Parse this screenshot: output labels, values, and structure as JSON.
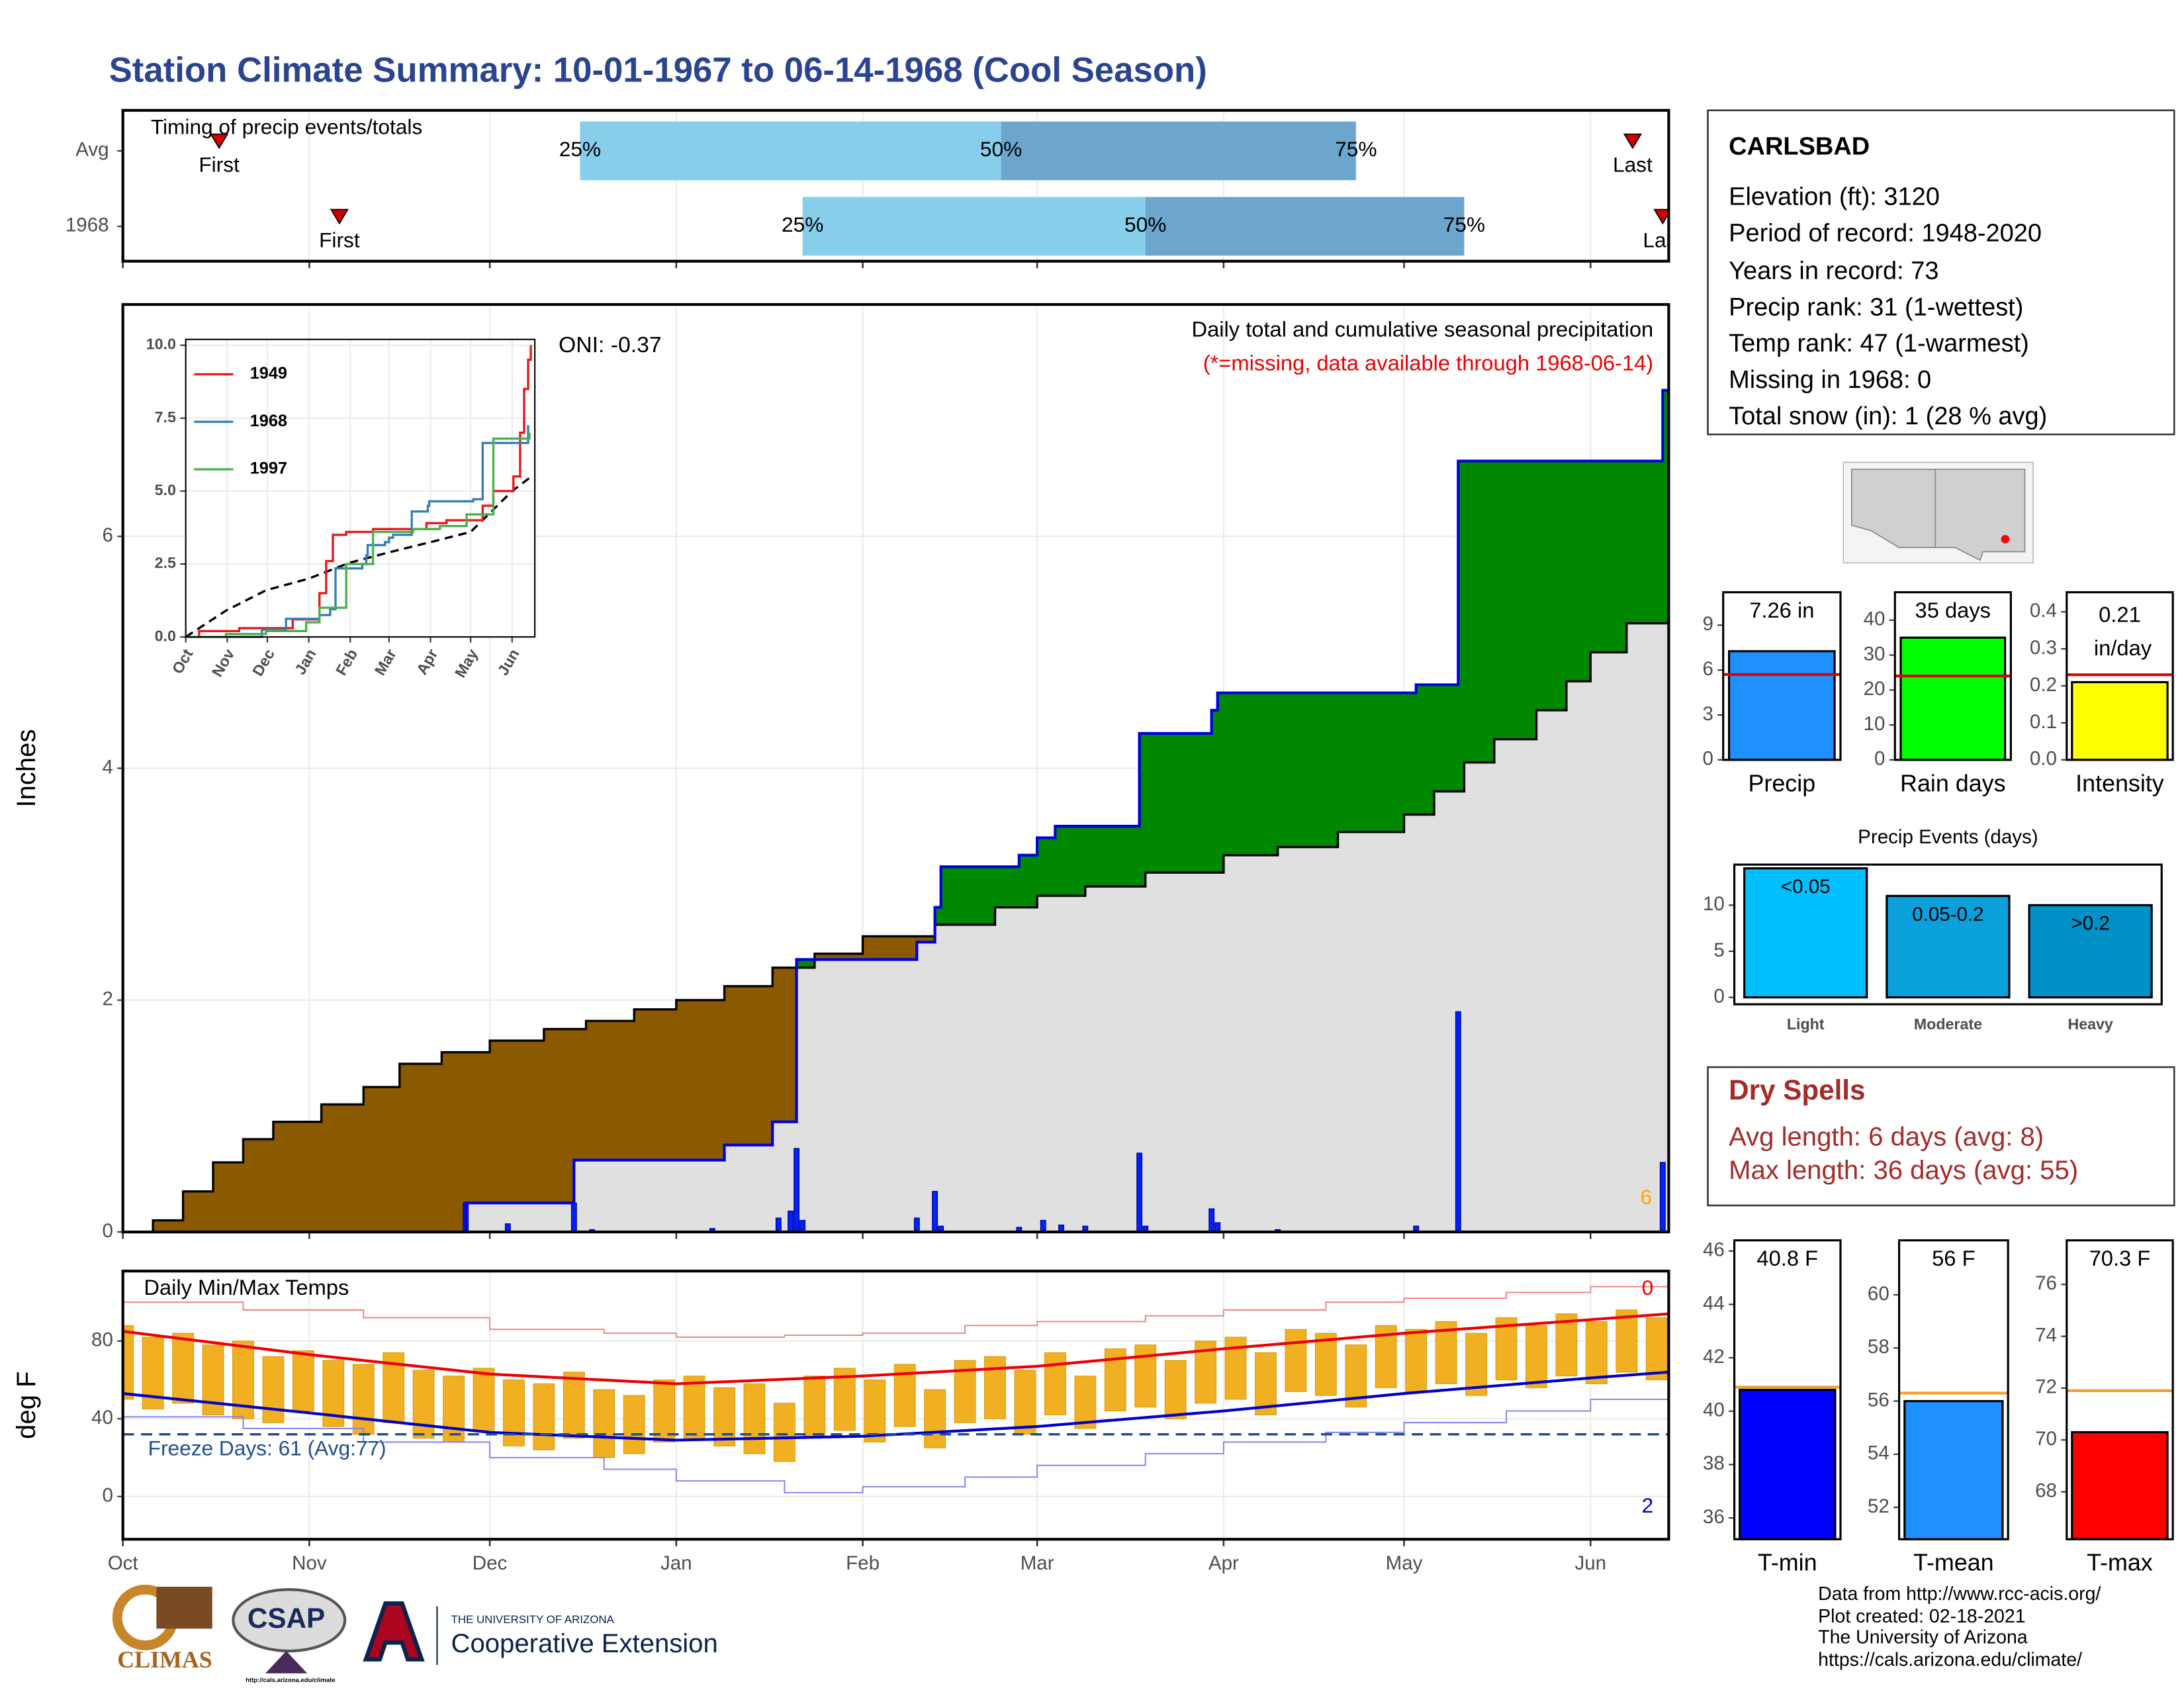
{
  "title": "Station Climate Summary: 10-01-1967 to 06-14-1968 (Cool Season)",
  "station": {
    "name": "CARLSBAD",
    "lines": [
      "Elevation (ft): 3120",
      "Period of record: 1948-2020",
      "Years in record: 73",
      "Precip rank: 31 (1-wettest)",
      "Temp rank: 47 (1-warmest)",
      "Missing in 1968: 0",
      "Total snow (in): 1 (28 % avg)"
    ]
  },
  "dry_spells": {
    "title": "Dry Spells",
    "lines": [
      "Avg length: 6 days (avg: 8)",
      "Max length: 36 days (avg: 55)"
    ]
  },
  "footer": [
    "Data from http://www.rcc-acis.org/",
    "Plot created: 02-18-2021",
    "The University of Arizona",
    "https://cals.arizona.edu/climate/"
  ],
  "logos": {
    "climas": "CLIMAS",
    "csap": "CSAP",
    "csap_url": "http://cals.arizona.edu/climate",
    "ua": "THE UNIVERSITY OF ARIZONA",
    "extension": "Cooperative Extension"
  },
  "chart_data": [
    {
      "type": "timeline",
      "title": "Timing of precip events/totals",
      "xlim": [
        0,
        257
      ],
      "xticks": [
        0,
        31,
        61,
        92,
        123,
        152,
        183,
        213,
        244
      ],
      "grid": true,
      "categories": [
        "Avg",
        "1968"
      ],
      "first": [
        16,
        36
      ],
      "p25": [
        76,
        113
      ],
      "p50": [
        146,
        170
      ],
      "p75": [
        205,
        223
      ],
      "last": [
        251,
        256
      ],
      "first_label": "First",
      "last_label": "Last",
      "percentile_labels": [
        "25%",
        "50%",
        "75%"
      ],
      "colors": [
        "#87ceeb",
        "#6ca6cd"
      ],
      "marker_color": "#cc0000"
    },
    {
      "type": "cumulative",
      "title": "Daily total and cumulative seasonal precipitation",
      "subtitle": "(*=missing, data available through 1968-06-14)",
      "annotation": "ONI: -0.37",
      "ylabel": "Inches",
      "xlim": [
        0,
        257
      ],
      "xticks": [
        0,
        31,
        61,
        92,
        123,
        152,
        183,
        213,
        244
      ],
      "ylim": [
        0,
        8
      ],
      "yticks": [
        0,
        2,
        4,
        6
      ],
      "grid": true,
      "count": 6,
      "count_color": "#ffa500",
      "above_color": "#008800",
      "below_color": "#8b5a00",
      "base_color": "#e0e0e0",
      "observed": {
        "color": "#0000e0",
        "x": [
          0,
          57,
          75,
          100,
          108,
          112,
          132,
          135,
          136,
          149,
          152,
          155,
          169,
          181,
          182,
          215,
          222,
          256
        ],
        "values": [
          0,
          0.25,
          0.62,
          0.75,
          0.95,
          2.35,
          2.5,
          2.8,
          3.15,
          3.25,
          3.4,
          3.5,
          4.3,
          4.5,
          4.65,
          4.72,
          6.65,
          7.26
        ]
      },
      "average": {
        "color": "#000000",
        "x": [
          0,
          5,
          10,
          15,
          20,
          25,
          33,
          40,
          46,
          53,
          61,
          70,
          77,
          85,
          92,
          100,
          108,
          115,
          123,
          135,
          145,
          152,
          160,
          170,
          183,
          192,
          202,
          213,
          218,
          223,
          228,
          235,
          240,
          244,
          250,
          257
        ],
        "values": [
          0,
          0.1,
          0.35,
          0.6,
          0.8,
          0.95,
          1.1,
          1.25,
          1.45,
          1.55,
          1.65,
          1.75,
          1.82,
          1.92,
          2.0,
          2.12,
          2.28,
          2.4,
          2.55,
          2.65,
          2.8,
          2.9,
          2.98,
          3.1,
          3.25,
          3.32,
          3.45,
          3.6,
          3.8,
          4.05,
          4.25,
          4.5,
          4.75,
          5.0,
          5.25,
          5.45
        ]
      },
      "daily": {
        "color": "#0022ff",
        "x": [
          57,
          64,
          75,
          78,
          98,
          109,
          111,
          112,
          113,
          132,
          135,
          136,
          149,
          153,
          156,
          160,
          169,
          170,
          181,
          182,
          192,
          215,
          222,
          256
        ],
        "values": [
          0.25,
          0.07,
          0.25,
          0.02,
          0.03,
          0.12,
          0.18,
          0.72,
          0.1,
          0.12,
          0.35,
          0.05,
          0.04,
          0.1,
          0.06,
          0.05,
          0.68,
          0.05,
          0.2,
          0.08,
          0.02,
          0.05,
          1.9,
          0.6
        ]
      }
    },
    {
      "type": "line",
      "xlim": [
        0,
        261
      ],
      "xticks": [
        {
          "value": 0,
          "label": "Oct"
        },
        {
          "value": 31,
          "label": "Nov"
        },
        {
          "value": 61,
          "label": "Dec"
        },
        {
          "value": 92,
          "label": "Jan"
        },
        {
          "value": 123,
          "label": "Feb"
        },
        {
          "value": 152,
          "label": "Mar"
        },
        {
          "value": 183,
          "label": "Apr"
        },
        {
          "value": 213,
          "label": "May"
        },
        {
          "value": 244,
          "label": "Jun"
        }
      ],
      "ylim": [
        0,
        10.2
      ],
      "yticks": [
        {
          "value": 0,
          "label": "0.0"
        },
        2.5,
        {
          "value": 5,
          "label": "5.0"
        },
        7.5,
        {
          "value": 10,
          "label": "10.0"
        }
      ],
      "grid": true,
      "legend": "top-left",
      "series": [
        {
          "name": "1949",
          "color": "#e41a1c",
          "x": [
            0,
            10,
            40,
            80,
            100,
            105,
            110,
            120,
            140,
            180,
            195,
            222,
            230,
            245,
            250,
            253,
            256,
            258
          ],
          "values": [
            0,
            0.2,
            0.3,
            0.6,
            1.5,
            2.6,
            3.5,
            3.6,
            3.7,
            3.9,
            4.0,
            4.5,
            5.0,
            5.5,
            7.0,
            8.5,
            9.5,
            10.0
          ]
        },
        {
          "name": "1968",
          "color": "#377eb8",
          "x": [
            0,
            57,
            75,
            100,
            108,
            112,
            132,
            135,
            136,
            149,
            152,
            155,
            169,
            181,
            182,
            215,
            222,
            256
          ],
          "values": [
            0,
            0.25,
            0.62,
            0.75,
            0.95,
            2.35,
            2.5,
            2.8,
            3.15,
            3.25,
            3.4,
            3.5,
            4.3,
            4.5,
            4.65,
            4.72,
            6.65,
            7.26
          ]
        },
        {
          "name": "1997",
          "color": "#4daf4a",
          "x": [
            0,
            30,
            60,
            90,
            100,
            115,
            120,
            140,
            170,
            190,
            210,
            230,
            257
          ],
          "values": [
            0,
            0.1,
            0.2,
            0.5,
            1.0,
            1.0,
            2.5,
            3.6,
            3.7,
            3.8,
            4.2,
            6.8,
            7.0
          ]
        }
      ],
      "average": {
        "color": "#000000",
        "dash": true,
        "x": [
          0,
          30,
          60,
          92,
          123,
          152,
          183,
          213,
          244,
          257
        ],
        "values": [
          0,
          0.9,
          1.6,
          2.0,
          2.55,
          2.9,
          3.25,
          3.6,
          5.0,
          5.45
        ]
      }
    },
    {
      "type": "temperature",
      "title": "Daily Min/Max Temps",
      "ylabel": "deg F",
      "xlim": [
        0,
        257
      ],
      "xticks": [
        {
          "value": 0,
          "label": "Oct"
        },
        {
          "value": 31,
          "label": "Nov"
        },
        {
          "value": 61,
          "label": "Dec"
        },
        {
          "value": 92,
          "label": "Jan"
        },
        {
          "value": 123,
          "label": "Feb"
        },
        {
          "value": 152,
          "label": "Mar"
        },
        {
          "value": 183,
          "label": "Apr"
        },
        {
          "value": 213,
          "label": "May"
        },
        {
          "value": 244,
          "label": "Jun"
        }
      ],
      "ylim": [
        -22,
        116
      ],
      "yticks": [
        0,
        40,
        80
      ],
      "grid": true,
      "freeze": {
        "value": 32,
        "label": "Freeze Days: 61 (Avg:77)",
        "color": "#1f4e8c"
      },
      "record_high_count": 0,
      "record_low_count": 2,
      "daily": {
        "color": "#f0b022",
        "x": [
          0,
          5,
          10,
          15,
          20,
          25,
          30,
          35,
          40,
          45,
          50,
          55,
          60,
          65,
          70,
          75,
          80,
          85,
          90,
          95,
          100,
          105,
          110,
          115,
          120,
          125,
          130,
          135,
          140,
          145,
          150,
          155,
          160,
          165,
          170,
          175,
          180,
          185,
          190,
          195,
          200,
          205,
          210,
          215,
          220,
          225,
          230,
          235,
          240,
          245,
          250,
          255
        ],
        "max": [
          88,
          82,
          84,
          78,
          80,
          72,
          75,
          70,
          68,
          74,
          65,
          62,
          66,
          60,
          58,
          64,
          55,
          52,
          60,
          62,
          56,
          58,
          48,
          62,
          66,
          60,
          68,
          55,
          70,
          72,
          65,
          74,
          62,
          76,
          78,
          70,
          80,
          82,
          74,
          86,
          84,
          78,
          88,
          86,
          90,
          84,
          92,
          88,
          94,
          90,
          96,
          92
        ],
        "min": [
          50,
          45,
          48,
          42,
          40,
          38,
          44,
          36,
          32,
          38,
          30,
          28,
          34,
          26,
          24,
          30,
          20,
          22,
          28,
          30,
          26,
          22,
          18,
          30,
          34,
          28,
          36,
          25,
          38,
          40,
          32,
          42,
          35,
          44,
          46,
          40,
          48,
          50,
          42,
          54,
          52,
          46,
          56,
          54,
          58,
          52,
          60,
          56,
          62,
          58,
          64,
          60
        ]
      },
      "normal_max": {
        "color": "#ee0000",
        "x": [
          0,
          31,
          61,
          92,
          123,
          152,
          183,
          213,
          244,
          257
        ],
        "values": [
          85,
          73,
          63,
          58,
          62,
          67,
          76,
          84,
          91,
          94
        ]
      },
      "normal_min": {
        "color": "#0000cc",
        "x": [
          0,
          31,
          61,
          92,
          123,
          152,
          183,
          213,
          244,
          257
        ],
        "values": [
          53,
          43,
          33,
          29,
          31,
          36,
          44,
          53,
          61,
          64
        ]
      },
      "record_high": {
        "color": "#f08080",
        "x": [
          0,
          20,
          40,
          61,
          80,
          92,
          110,
          123,
          140,
          152,
          170,
          183,
          200,
          213,
          230,
          244,
          257
        ],
        "values": [
          100,
          96,
          92,
          86,
          84,
          82,
          83,
          84,
          88,
          90,
          93,
          96,
          100,
          102,
          105,
          108,
          110
        ]
      },
      "record_low": {
        "color": "#8080f0",
        "x": [
          0,
          20,
          40,
          61,
          80,
          92,
          110,
          123,
          140,
          152,
          170,
          183,
          200,
          213,
          230,
          244,
          257
        ],
        "values": [
          41,
          35,
          28,
          20,
          14,
          8,
          2,
          5,
          10,
          16,
          22,
          28,
          33,
          38,
          44,
          50,
          54
        ]
      }
    },
    {
      "type": "bar",
      "categories": [
        "Precip"
      ],
      "values": [
        7.26
      ],
      "value_labels": [
        "7.26 in"
      ],
      "average": 5.7,
      "average_color": "#e00000",
      "color": "#1e90ff",
      "ylim": [
        0,
        11.2
      ],
      "yticks": [
        0,
        3,
        6,
        9
      ]
    },
    {
      "type": "bar",
      "categories": [
        "Rain days"
      ],
      "values": [
        35
      ],
      "value_labels": [
        "35 days"
      ],
      "average": 24,
      "average_color": "#e00000",
      "color": "#00ff00",
      "ylim": [
        0,
        48
      ],
      "yticks": [
        0,
        10,
        20,
        30,
        40
      ]
    },
    {
      "type": "bar",
      "categories": [
        "Intensity"
      ],
      "values": [
        0.21
      ],
      "value_labels": [
        "0.21 in/day"
      ],
      "average": 0.23,
      "average_color": "#e00000",
      "color": "#ffff00",
      "ylim": [
        0,
        0.453
      ],
      "yticks": [
        {
          "value": 0,
          "label": "0.0"
        },
        0.1,
        0.2,
        0.3,
        0.4
      ]
    },
    {
      "type": "bar",
      "title": "Precip Events (days)",
      "categories": [
        "Light",
        "Moderate",
        "Heavy"
      ],
      "values": [
        14,
        11,
        10
      ],
      "bar_labels": [
        "<0.05",
        "0.05-0.2",
        ">0.2"
      ],
      "colors": [
        "#00bfff",
        "#0aa0dc",
        "#0090c8"
      ],
      "ylim": [
        -0.75,
        14.4
      ],
      "yticks": [
        0,
        5,
        10
      ]
    },
    {
      "type": "bar",
      "categories": [
        "T-min"
      ],
      "values": [
        40.8
      ],
      "value_labels": [
        "40.8 F"
      ],
      "average": 40.9,
      "average_color": "#f0a030",
      "color": "#0000ff",
      "ylim": [
        35.2,
        46.4
      ],
      "yticks": [
        36,
        38,
        40,
        42,
        44,
        46
      ]
    },
    {
      "type": "bar",
      "categories": [
        "T-mean"
      ],
      "values": [
        56
      ],
      "value_labels": [
        "56 F"
      ],
      "average": 56.3,
      "average_color": "#f0a030",
      "color": "#1e90ff",
      "ylim": [
        50.8,
        62.05
      ],
      "yticks": [
        52,
        54,
        56,
        58,
        60
      ]
    },
    {
      "type": "bar",
      "categories": [
        "T-max"
      ],
      "values": [
        70.3
      ],
      "value_labels": [
        "70.3 F"
      ],
      "average": 71.9,
      "average_color": "#f0a030",
      "color": "#ff0000",
      "ylim": [
        66.17,
        77.7
      ],
      "yticks": [
        68,
        70,
        72,
        74,
        76
      ]
    }
  ]
}
